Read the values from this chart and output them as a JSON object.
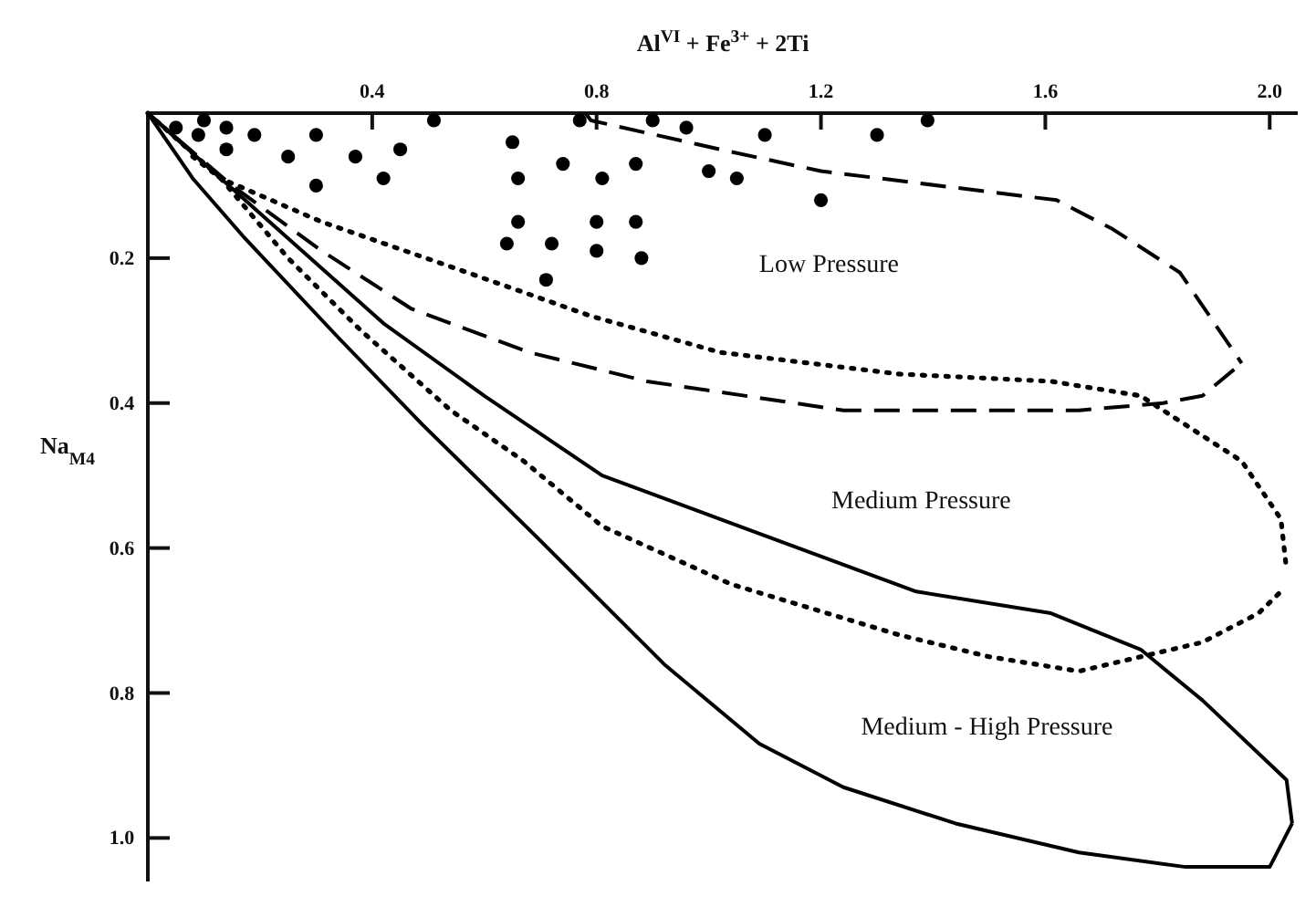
{
  "chart_data": {
    "type": "scatter",
    "xlabel": "Al$^{VI}$ + Fe$^{3+}$ + 2Ti",
    "ylabel": "Na$_{M4}$",
    "xlim": [
      0,
      2.05
    ],
    "ylim": [
      1.06,
      0
    ],
    "xticks": [
      0.4,
      0.8,
      1.2,
      1.6,
      {
        "value": 2,
        "label": "2.0"
      }
    ],
    "yticks": [
      0.2,
      0.4,
      0.6,
      0.8,
      {
        "value": 1,
        "label": "1.0"
      }
    ],
    "grid": false,
    "series": [
      {
        "color": "#000000",
        "marker": "circle",
        "x": [
          0.05,
          0.1,
          0.14,
          0.19,
          0.3,
          0.51,
          0.77,
          0.9,
          0.96,
          1.1,
          0.14,
          0.25,
          0.37,
          0.45,
          0.65,
          0.74,
          0.87,
          1.0,
          1.05,
          1.2,
          0.09,
          0.3,
          0.42,
          0.66,
          0.81,
          0.66,
          0.8,
          0.87,
          0.64,
          0.72,
          0.8,
          0.88,
          0.71,
          1.3,
          1.39
        ],
        "values": [
          0.02,
          0.01,
          0.02,
          0.03,
          0.03,
          0.01,
          0.01,
          0.01,
          0.02,
          0.03,
          0.05,
          0.06,
          0.06,
          0.05,
          0.04,
          0.07,
          0.07,
          0.08,
          0.09,
          0.12,
          0.03,
          0.1,
          0.09,
          0.09,
          0.09,
          0.15,
          0.15,
          0.15,
          0.18,
          0.18,
          0.19,
          0.2,
          0.23,
          0.03,
          0.01
        ]
      },
      {
        "type": "line",
        "color": "#000000",
        "line_style": "dashed",
        "marker": "none",
        "x": [
          0.78,
          0.79,
          1.02,
          1.2,
          1.62,
          1.72,
          1.84,
          1.95
        ],
        "values": [
          0,
          0.01,
          0.05,
          0.08,
          0.12,
          0.16,
          0.22,
          0.345
        ]
      },
      {
        "type": "line",
        "color": "#000000",
        "line_style": "dashed",
        "marker": "none",
        "x": [
          0,
          0.15,
          0.31,
          0.47,
          0.68,
          0.89,
          1.24,
          1.45,
          1.66,
          1.81,
          1.88,
          1.95
        ],
        "values": [
          0,
          0.1,
          0.19,
          0.27,
          0.33,
          0.37,
          0.41,
          0.41,
          0.41,
          0.4,
          0.39,
          0.345
        ]
      },
      {
        "type": "line",
        "color": "#000000",
        "line_style": "dotted",
        "marker": "none",
        "x": [
          0,
          0.13,
          0.31,
          0.57,
          0.79,
          1.02,
          1.34,
          1.61,
          1.77,
          1.81,
          1.95,
          2.02,
          2.03
        ],
        "values": [
          0,
          0.09,
          0.15,
          0.22,
          0.28,
          0.33,
          0.36,
          0.37,
          0.39,
          0.41,
          0.48,
          0.56,
          0.63
        ]
      },
      {
        "type": "line",
        "color": "#000000",
        "line_style": "dotted",
        "marker": "none",
        "x": [
          0.08,
          0.13,
          0.25,
          0.38,
          0.54,
          0.67,
          0.81,
          1.04,
          1.34,
          1.5,
          1.66,
          1.77,
          1.88,
          1.98,
          2.02
        ],
        "values": [
          0.06,
          0.09,
          0.2,
          0.3,
          0.41,
          0.48,
          0.57,
          0.65,
          0.72,
          0.75,
          0.77,
          0.75,
          0.73,
          0.69,
          0.66
        ]
      },
      {
        "type": "line",
        "color": "#000000",
        "line_style": "solid",
        "marker": "none",
        "x": [
          0,
          0.13,
          0.42,
          0.6,
          0.81,
          1.02,
          1.37,
          1.61,
          1.77,
          1.88,
          2.03,
          2.04
        ],
        "values": [
          0,
          0.09,
          0.29,
          0.39,
          0.5,
          0.56,
          0.66,
          0.69,
          0.74,
          0.81,
          0.92,
          0.98
        ]
      },
      {
        "type": "line",
        "color": "#000000",
        "line_style": "solid",
        "marker": "none",
        "x": [
          0,
          0.08,
          0.17,
          0.34,
          0.49,
          0.7,
          0.92,
          1.09,
          1.24,
          1.44,
          1.66,
          1.85,
          2.0,
          2.04
        ],
        "values": [
          0,
          0.09,
          0.17,
          0.31,
          0.43,
          0.59,
          0.76,
          0.87,
          0.93,
          0.98,
          1.02,
          1.04,
          1.04,
          0.98
        ]
      }
    ],
    "annotations": [
      "Low Pressure",
      "Medium Pressure",
      "Medium - High Pressure"
    ]
  }
}
